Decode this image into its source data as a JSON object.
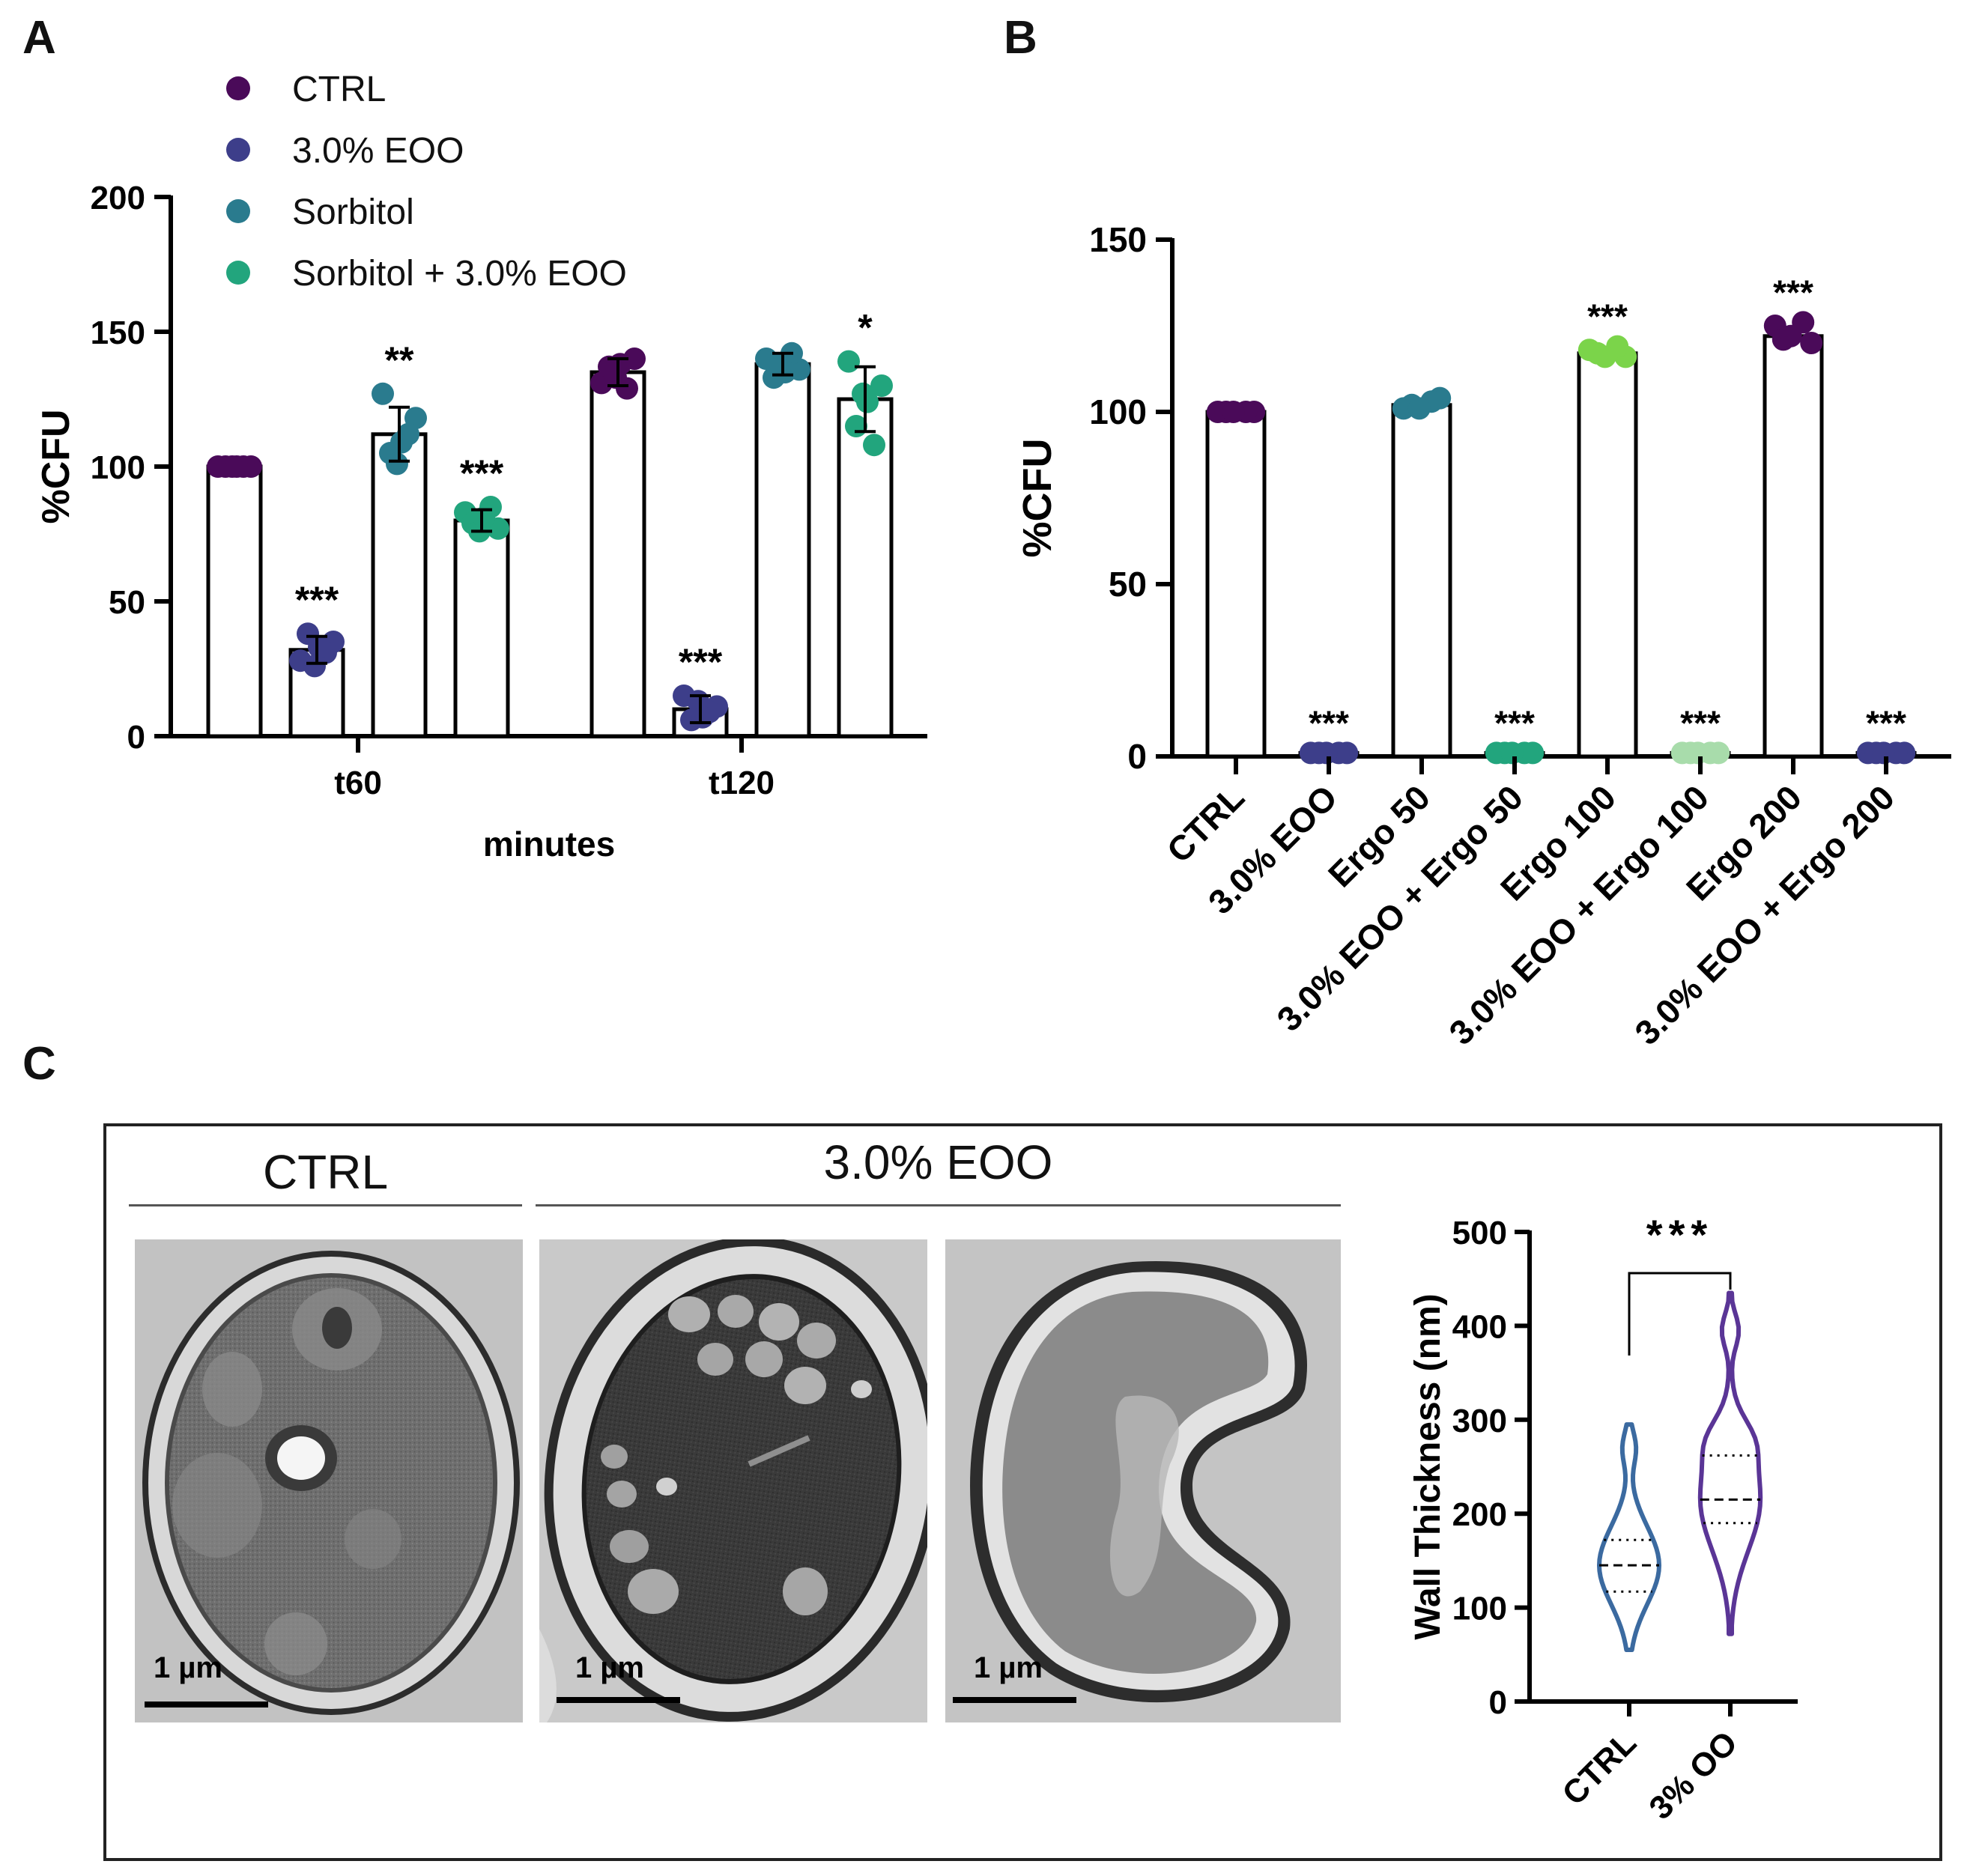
{
  "panels": {
    "a": "A",
    "b": "B",
    "c": "C"
  },
  "chart_data": [
    {
      "panel": "A",
      "type": "bar",
      "title": "",
      "xlabel": "minutes",
      "ylabel": "%CFU",
      "ylim": [
        0,
        200
      ],
      "yticks": [
        "0",
        "50",
        "100",
        "150",
        "200"
      ],
      "categories": [
        "t60",
        "t120"
      ],
      "legend": {
        "placement": "top-left",
        "entries": [
          {
            "label": "CTRL",
            "color": "#4a0a59"
          },
          {
            "label": "3.0% EOO",
            "color": "#3d3e8a"
          },
          {
            "label": "Sorbitol",
            "color": "#2a7b8e"
          },
          {
            "label": "Sorbitol + 3.0% EOO",
            "color": "#22a57d"
          }
        ]
      },
      "series": [
        {
          "name": "CTRL",
          "color": "#4a0a59",
          "values": [
            100,
            135
          ],
          "sd": [
            0,
            5
          ],
          "points": [
            [
              100,
              100,
              100,
              100,
              100,
              100
            ],
            [
              131,
              140,
              137,
              129,
              133,
              138
            ]
          ],
          "sig": [
            "",
            ""
          ]
        },
        {
          "name": "3.0% EOO",
          "color": "#3d3e8a",
          "values": [
            32,
            10
          ],
          "sd": [
            5,
            5
          ],
          "points": [
            [
              28,
              35,
              38,
              31,
              26,
              33
            ],
            [
              15,
              11,
              6,
              9,
              13,
              7
            ]
          ],
          "sig": [
            "***",
            "***"
          ]
        },
        {
          "name": "Sorbitol",
          "color": "#2a7b8e",
          "values": [
            112,
            138
          ],
          "sd": [
            10,
            4
          ],
          "points": [
            [
              127,
              118,
              105,
              112,
              101,
              109
            ],
            [
              140,
              136,
              133,
              142,
              138,
              135
            ]
          ],
          "sig": [
            "**",
            ""
          ]
        },
        {
          "name": "Sorbitol + 3.0% EOO",
          "color": "#22a57d",
          "values": [
            80,
            125
          ],
          "sd": [
            4,
            12
          ],
          "points": [
            [
              83,
              77,
              79,
              85,
              76,
              81
            ],
            [
              139,
              130,
              115,
              108,
              127,
              124
            ]
          ],
          "sig": [
            "***",
            "*"
          ]
        }
      ]
    },
    {
      "panel": "B",
      "type": "bar",
      "title": "",
      "xlabel": "",
      "ylabel": "%CFU",
      "ylim": [
        0,
        150
      ],
      "yticks": [
        "0",
        "50",
        "100",
        "150"
      ],
      "categories": [
        "CTRL",
        "3.0% EOO",
        "Ergo 50",
        "3.0% EOO + Ergo 50",
        "Ergo 100",
        "3.0% EOO + Ergo 100",
        "Ergo 200",
        "3.0% EOO + Ergo 200"
      ],
      "values": [
        100,
        1,
        102,
        1,
        117,
        1,
        122,
        1
      ],
      "colors": [
        "#4a0a59",
        "#3d3e8a",
        "#2a7b8e",
        "#22a57d",
        "#7bd44a",
        "#a8dcab",
        "#4a0a59",
        "#3d3e8a"
      ],
      "points": [
        [
          100,
          100,
          100,
          100,
          100
        ],
        [
          1,
          1,
          1,
          1,
          1
        ],
        [
          101,
          104,
          102,
          103,
          101
        ],
        [
          1,
          1,
          1,
          1,
          1
        ],
        [
          118,
          116,
          117,
          119,
          116
        ],
        [
          1,
          1,
          1,
          1,
          1
        ],
        [
          125,
          120,
          121,
          126,
          122
        ],
        [
          1,
          1,
          1,
          1,
          1
        ]
      ],
      "sig": [
        "",
        "***",
        "",
        "***",
        "***",
        "***",
        "***",
        "***"
      ]
    },
    {
      "panel": "C",
      "type": "violin",
      "title": "",
      "xlabel": "",
      "ylabel": "Wall Thickness (nm)",
      "ylim": [
        0,
        500
      ],
      "yticks": [
        "0",
        "100",
        "200",
        "300",
        "400",
        "500"
      ],
      "categories": [
        "CTRL",
        "3% OO"
      ],
      "colors": [
        "#3b6aa0",
        "#5a3596"
      ],
      "median": [
        145,
        215
      ],
      "quartiles": [
        [
          117,
          172
        ],
        [
          190,
          262
        ]
      ],
      "range": [
        [
          55,
          295
        ],
        [
          72,
          435
        ]
      ],
      "sig": "***"
    }
  ],
  "micrographs": {
    "ctrl_label": "CTRL",
    "eoo_label": "3.0% EOO",
    "scale_label": "1 µm"
  }
}
